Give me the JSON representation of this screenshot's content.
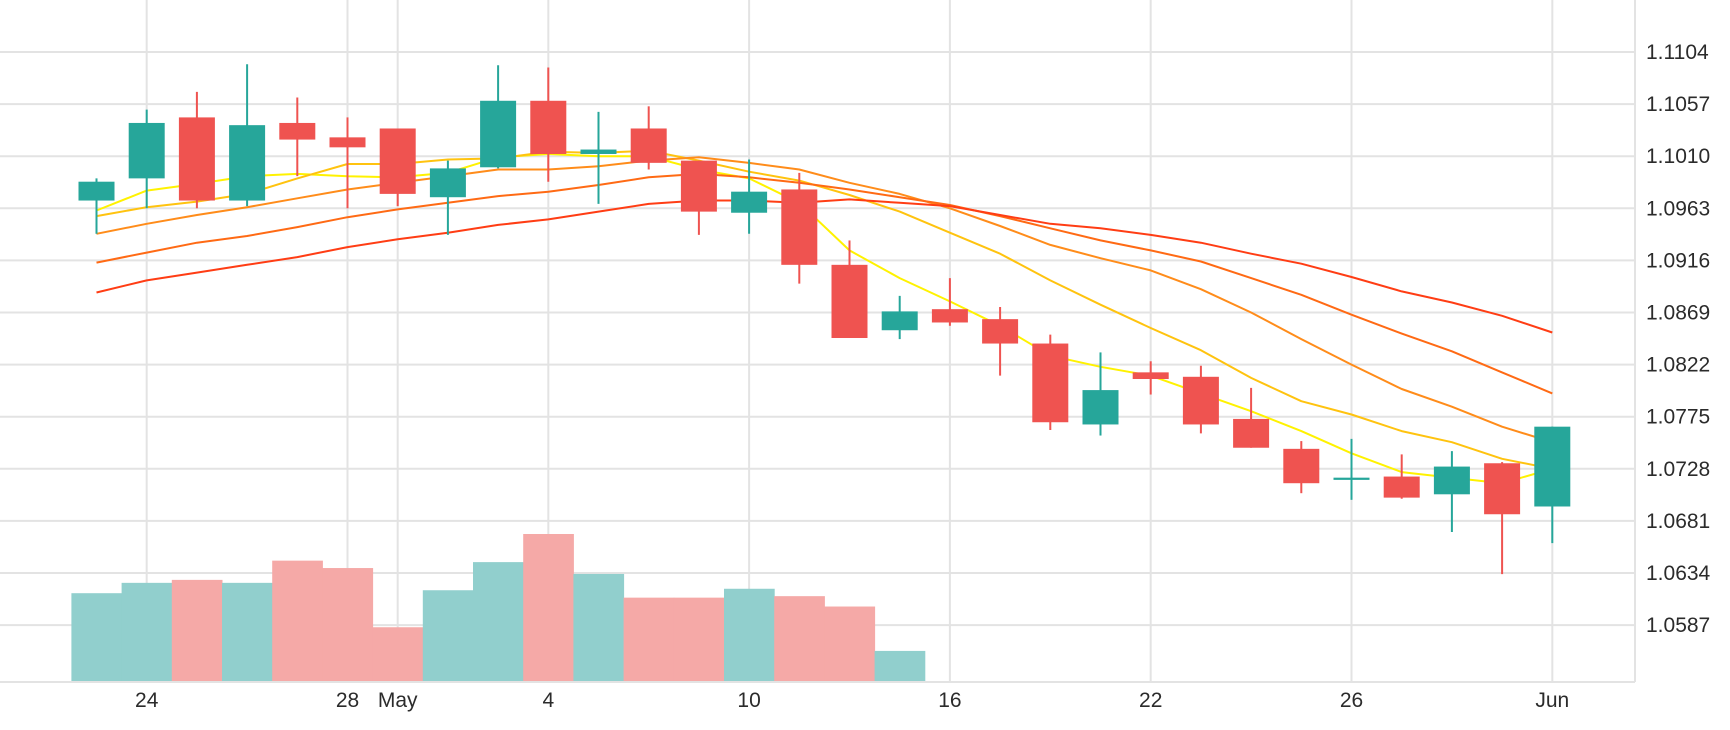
{
  "chart_data": {
    "type": "candlestick",
    "x_tick_labels": [
      {
        "idx": 1,
        "label": "24"
      },
      {
        "idx": 5,
        "label": "28"
      },
      {
        "idx": 6,
        "label": "May"
      },
      {
        "idx": 9,
        "label": "4"
      },
      {
        "idx": 13,
        "label": "10"
      },
      {
        "idx": 17,
        "label": "16"
      },
      {
        "idx": 21,
        "label": "22"
      },
      {
        "idx": 25,
        "label": "26"
      },
      {
        "idx": 29,
        "label": "Jun"
      }
    ],
    "y_ticks": [
      "1.1104",
      "1.1057",
      "1.1010",
      "1.0963",
      "1.0916",
      "1.0869",
      "1.0822",
      "1.0775",
      "1.0728",
      "1.0681",
      "1.0634",
      "1.0587"
    ],
    "ylim": [
      1.054,
      1.115
    ],
    "volume_max": 100,
    "candles": [
      {
        "o": 1.097,
        "h": 1.099,
        "l": 1.094,
        "c": 1.0987,
        "vol": 60
      },
      {
        "o": 1.099,
        "h": 1.1052,
        "l": 1.0963,
        "c": 1.104,
        "vol": 67
      },
      {
        "o": 1.1045,
        "h": 1.1068,
        "l": 1.0963,
        "c": 1.097,
        "vol": 69
      },
      {
        "o": 1.097,
        "h": 1.1093,
        "l": 1.0965,
        "c": 1.1038,
        "vol": 67
      },
      {
        "o": 1.104,
        "h": 1.1063,
        "l": 1.0992,
        "c": 1.1025,
        "vol": 82
      },
      {
        "o": 1.1027,
        "h": 1.1045,
        "l": 1.0963,
        "c": 1.1018,
        "vol": 77
      },
      {
        "o": 1.1035,
        "h": 1.1035,
        "l": 1.0965,
        "c": 1.0976,
        "vol": 37
      },
      {
        "o": 1.0973,
        "h": 1.1006,
        "l": 1.0939,
        "c": 1.0999,
        "vol": 62
      },
      {
        "o": 1.1,
        "h": 1.1092,
        "l": 1.0999,
        "c": 1.106,
        "vol": 81
      },
      {
        "o": 1.106,
        "h": 1.109,
        "l": 1.0987,
        "c": 1.1012,
        "vol": 100
      },
      {
        "o": 1.1012,
        "h": 1.105,
        "l": 1.0967,
        "c": 1.1016,
        "vol": 73
      },
      {
        "o": 1.1035,
        "h": 1.1055,
        "l": 1.0998,
        "c": 1.1004,
        "vol": 57
      },
      {
        "o": 1.1006,
        "h": 1.1006,
        "l": 1.0939,
        "c": 1.096,
        "vol": 57
      },
      {
        "o": 1.0959,
        "h": 1.1007,
        "l": 1.094,
        "c": 1.0978,
        "vol": 63
      },
      {
        "o": 1.098,
        "h": 1.0995,
        "l": 1.0895,
        "c": 1.0912,
        "vol": 58
      },
      {
        "o": 1.0912,
        "h": 1.0934,
        "l": 1.0846,
        "c": 1.0846,
        "vol": 51
      },
      {
        "o": 1.0853,
        "h": 1.0884,
        "l": 1.0845,
        "c": 1.087,
        "vol": 21
      },
      {
        "o": 1.0872,
        "h": 1.09,
        "l": 1.0857,
        "c": 1.086,
        "vol": 0
      },
      {
        "o": 1.0863,
        "h": 1.0874,
        "l": 1.0812,
        "c": 1.0841,
        "vol": 0
      },
      {
        "o": 1.0841,
        "h": 1.0849,
        "l": 1.0763,
        "c": 1.077,
        "vol": 0
      },
      {
        "o": 1.0768,
        "h": 1.0833,
        "l": 1.0758,
        "c": 1.0799,
        "vol": 0
      },
      {
        "o": 1.0815,
        "h": 1.0825,
        "l": 1.0795,
        "c": 1.0809,
        "vol": 0
      },
      {
        "o": 1.0811,
        "h": 1.0821,
        "l": 1.076,
        "c": 1.0768,
        "vol": 0
      },
      {
        "o": 1.0773,
        "h": 1.0801,
        "l": 1.0747,
        "c": 1.0747,
        "vol": 0
      },
      {
        "o": 1.0746,
        "h": 1.0753,
        "l": 1.0706,
        "c": 1.0715,
        "vol": 0
      },
      {
        "o": 1.0718,
        "h": 1.0755,
        "l": 1.07,
        "c": 1.072,
        "vol": 0
      },
      {
        "o": 1.0721,
        "h": 1.0741,
        "l": 1.0701,
        "c": 1.0702,
        "vol": 0
      },
      {
        "o": 1.0705,
        "h": 1.0744,
        "l": 1.0671,
        "c": 1.073,
        "vol": 0
      },
      {
        "o": 1.0733,
        "h": 1.0734,
        "l": 1.0633,
        "c": 1.0687,
        "vol": 0
      },
      {
        "o": 1.0694,
        "h": 1.0766,
        "l": 1.0661,
        "c": 1.0766,
        "vol": 0
      }
    ],
    "ma_lines": [
      {
        "color": "#fff200",
        "values": [
          1.0961,
          1.0979,
          1.0985,
          1.0992,
          1.0994,
          1.0992,
          1.0991,
          1.0995,
          1.1009,
          1.1012,
          1.101,
          1.101,
          1.0998,
          1.099,
          1.0968,
          1.0925,
          1.09,
          1.0879,
          1.0857,
          1.083,
          1.082,
          1.0812,
          1.0796,
          1.078,
          1.0762,
          1.0742,
          1.0725,
          1.072,
          1.0715,
          1.0728
        ]
      },
      {
        "color": "#ffc30f",
        "values": [
          1.0956,
          1.0964,
          1.0969,
          1.0976,
          1.099,
          1.1003,
          1.1003,
          1.1007,
          1.1008,
          1.1014,
          1.1013,
          1.1015,
          1.1006,
          1.0996,
          1.0988,
          1.0975,
          1.096,
          1.0941,
          1.0922,
          1.0898,
          1.0876,
          1.0855,
          1.0835,
          1.081,
          1.0789,
          1.0777,
          1.0762,
          1.0752,
          1.0737,
          1.0728
        ]
      },
      {
        "color": "#ff8c1a",
        "values": [
          1.094,
          1.0949,
          1.0957,
          1.0964,
          1.0972,
          1.098,
          1.0986,
          1.0992,
          1.0998,
          1.0998,
          1.1001,
          1.1006,
          1.1009,
          1.1004,
          1.0998,
          1.0986,
          1.0976,
          1.0963,
          1.0947,
          1.093,
          1.0918,
          1.0907,
          1.089,
          1.0869,
          1.0845,
          1.0822,
          1.08,
          1.0784,
          1.0766,
          1.0752
        ]
      },
      {
        "color": "#ff6a14",
        "values": [
          1.0914,
          1.0923,
          1.0932,
          1.0938,
          1.0946,
          1.0955,
          1.0962,
          1.0968,
          1.0974,
          1.0978,
          1.0984,
          1.0991,
          1.0994,
          1.0991,
          1.0986,
          1.098,
          1.0973,
          1.0966,
          1.0956,
          1.0945,
          1.0934,
          1.0925,
          1.0915,
          1.09,
          1.0885,
          1.0867,
          1.085,
          1.0834,
          1.0815,
          1.0796
        ]
      },
      {
        "color": "#ff3d14",
        "values": [
          1.0887,
          1.0898,
          1.0905,
          1.0912,
          1.0919,
          1.0928,
          1.0935,
          1.0941,
          1.0948,
          1.0953,
          1.096,
          1.0967,
          1.097,
          1.097,
          1.0968,
          1.0971,
          1.0968,
          1.0965,
          1.0957,
          1.0949,
          1.0945,
          1.0939,
          1.0932,
          1.0922,
          1.0913,
          1.0901,
          1.0888,
          1.0878,
          1.0866,
          1.0851
        ]
      }
    ],
    "colors": {
      "up": "#26a69a",
      "down": "#ef5350",
      "volume_up": "#91cfcd",
      "volume_down": "#f5a9a7",
      "grid": "#e3e3e3"
    },
    "grid": true
  }
}
